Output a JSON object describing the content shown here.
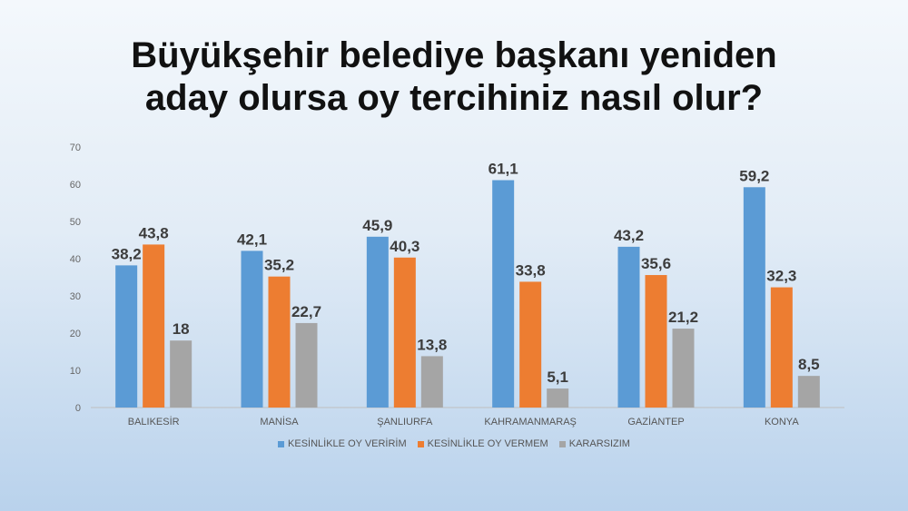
{
  "chart_data": {
    "type": "bar",
    "title_lines": [
      "Büyükşehir belediye başkanı yeniden",
      "aday olursa oy tercihiniz nasıl olur?"
    ],
    "categories": [
      "BALIKESİR",
      "MANİSA",
      "ŞANLIURFA",
      "KAHRAMANMARAŞ",
      "GAZİANTEP",
      "KONYA"
    ],
    "series": [
      {
        "name": "KESİNLİKLE OY VERİRİM",
        "color": "#5b9bd5",
        "values": [
          38.2,
          42.1,
          45.9,
          61.1,
          43.2,
          59.2
        ],
        "labels": [
          "38,2",
          "42,1",
          "45,9",
          "61,1",
          "43,2",
          "59,2"
        ]
      },
      {
        "name": "KESİNLİKLE OY VERMEM",
        "color": "#ed7d31",
        "values": [
          43.8,
          35.2,
          40.3,
          33.8,
          35.6,
          32.3
        ],
        "labels": [
          "43,8",
          "35,2",
          "40,3",
          "33,8",
          "35,6",
          "32,3"
        ]
      },
      {
        "name": "KARARSIZIM",
        "color": "#a5a5a5",
        "values": [
          18,
          22.7,
          13.8,
          5.1,
          21.2,
          8.5
        ],
        "labels": [
          "18",
          "22,7",
          "13,8",
          "5,1",
          "21,2",
          "8,5"
        ]
      }
    ],
    "ylim": [
      0,
      70
    ],
    "yticks": [
      "0",
      "10",
      "20",
      "30",
      "40",
      "50",
      "60",
      "70"
    ],
    "legend_position": "bottom",
    "grid": false
  }
}
